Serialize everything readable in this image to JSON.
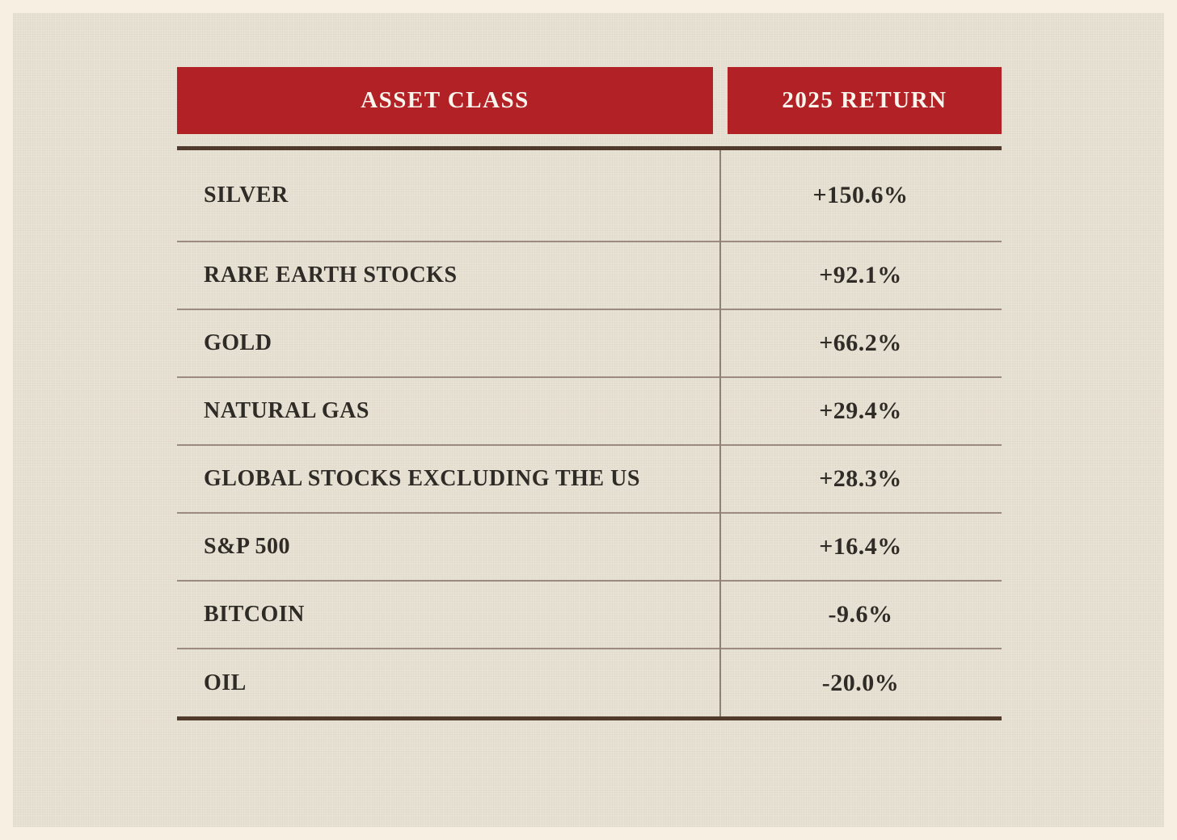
{
  "theme": {
    "outer-bg": "#f7efe2",
    "panel-bg": "#e8e2d4",
    "header-bg": "#b12126",
    "header-text": "#faf6ed",
    "thick-rule": "#503a2c",
    "thin-rule": "#9c8c80",
    "divider": "#8f8074",
    "body-text": "#2f2c27"
  },
  "chart_data": {
    "type": "table",
    "columns": [
      "ASSET CLASS",
      "2025 RETURN"
    ],
    "rows": [
      [
        "SILVER",
        "+150.6%"
      ],
      [
        "RARE EARTH STOCKS",
        "+92.1%"
      ],
      [
        "GOLD",
        "+66.2%"
      ],
      [
        "NATURAL GAS",
        "+29.4%"
      ],
      [
        "GLOBAL STOCKS EXCLUDING THE US",
        "+28.3%"
      ],
      [
        "S&P 500",
        "+16.4%"
      ],
      [
        "BITCOIN",
        "-9.6%"
      ],
      [
        "OIL",
        "-20.0%"
      ]
    ],
    "values_numeric": [
      150.6,
      92.1,
      66.2,
      29.4,
      28.3,
      16.4,
      -9.6,
      -20.0
    ],
    "legend_position": "none",
    "grid": "horizontal-rules"
  }
}
